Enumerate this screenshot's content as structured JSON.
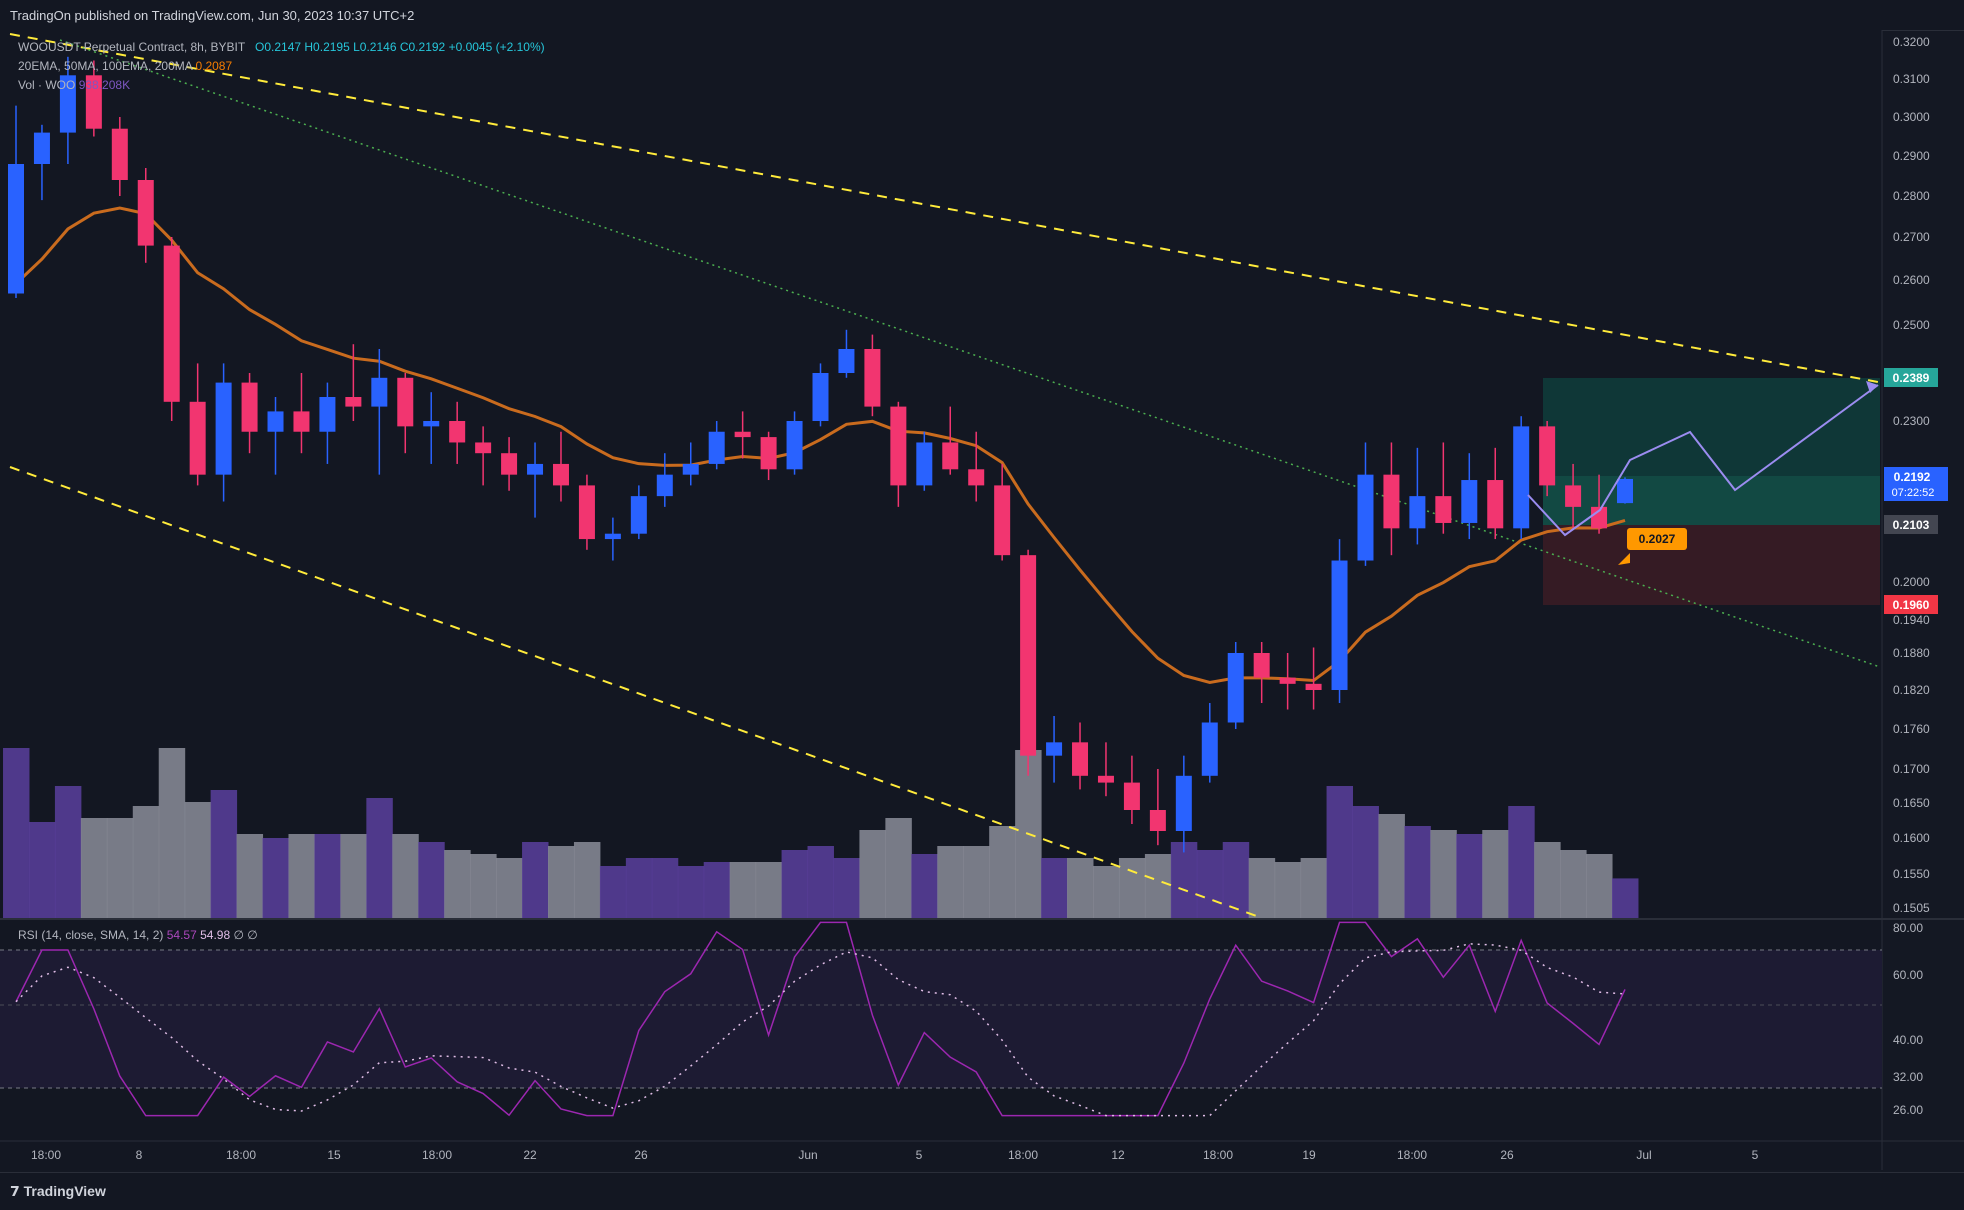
{
  "header": {
    "publisher": "TradingOn published on TradingView.com, Jun 30, 2023 10:37 UTC+2"
  },
  "legend": {
    "symbol": "WOOUSDT Perpetual Contract, 8h, BYBIT",
    "open": "O0.2147",
    "high": "H0.2195",
    "low": "L0.2146",
    "close": "C0.2192",
    "change": "+0.0045 (+2.10%)",
    "ema": "20EMA, 50MA, 100EMA, 200MA",
    "ema_value": "0.2087",
    "vol_label": "Vol · WOO",
    "vol_value": "938.208K"
  },
  "rsi_legend": {
    "label": "RSI (14, close, SMA, 14, 2)",
    "v1": "54.57",
    "v2": "54.98",
    "v3": "∅",
    "v4": "∅"
  },
  "footer": {
    "logo": "TradingView"
  },
  "colors": {
    "up": "#2962ff",
    "down": "#f23570",
    "ema": "#c96b1e",
    "trend": "#ffeb3b",
    "dotted": "#4caf50",
    "rsi": "#9c27b0",
    "tp": "#26a69a",
    "sl": "#ef5350"
  },
  "chart_data": [
    {
      "type": "candlestick",
      "title": "WOOUSDT Perpetual Contract, 8h, BYBIT",
      "price_axis_ticks": [
        "0.3200",
        "0.3100",
        "0.3000",
        "0.2900",
        "0.2800",
        "0.2700",
        "0.2600",
        "0.2500",
        "0.2300",
        "0.2000",
        "0.1940",
        "0.1880",
        "0.1820",
        "0.1760",
        "0.1700",
        "0.1650",
        "0.1600",
        "0.1550",
        "0.1505"
      ],
      "time_axis_ticks": [
        "18:00",
        "8",
        "18:00",
        "15",
        "18:00",
        "22",
        "26",
        "Jun",
        "5",
        "18:00",
        "12",
        "18:00",
        "19",
        "18:00",
        "26",
        "Jul",
        "5"
      ],
      "price_labels": {
        "target": "0.2389",
        "last": "0.2192",
        "countdown": "07:22:52",
        "entry": "0.2103",
        "stop": "0.1960",
        "marker": "0.2027"
      },
      "ohlc_approx": [
        [
          0.257,
          0.303,
          0.256,
          0.288
        ],
        [
          0.288,
          0.298,
          0.279,
          0.296
        ],
        [
          0.296,
          0.316,
          0.288,
          0.311
        ],
        [
          0.311,
          0.315,
          0.295,
          0.297
        ],
        [
          0.297,
          0.3,
          0.28,
          0.284
        ],
        [
          0.284,
          0.287,
          0.264,
          0.268
        ],
        [
          0.268,
          0.27,
          0.23,
          0.234
        ],
        [
          0.234,
          0.242,
          0.218,
          0.22
        ],
        [
          0.22,
          0.242,
          0.215,
          0.238
        ],
        [
          0.238,
          0.24,
          0.224,
          0.228
        ],
        [
          0.228,
          0.235,
          0.22,
          0.232
        ],
        [
          0.232,
          0.24,
          0.224,
          0.228
        ],
        [
          0.228,
          0.238,
          0.222,
          0.235
        ],
        [
          0.235,
          0.246,
          0.23,
          0.233
        ],
        [
          0.233,
          0.245,
          0.22,
          0.239
        ],
        [
          0.239,
          0.24,
          0.224,
          0.229
        ],
        [
          0.229,
          0.236,
          0.222,
          0.23
        ],
        [
          0.23,
          0.234,
          0.222,
          0.226
        ],
        [
          0.226,
          0.229,
          0.218,
          0.224
        ],
        [
          0.224,
          0.227,
          0.217,
          0.22
        ],
        [
          0.22,
          0.226,
          0.212,
          0.222
        ],
        [
          0.222,
          0.228,
          0.215,
          0.218
        ],
        [
          0.218,
          0.22,
          0.206,
          0.208
        ],
        [
          0.208,
          0.212,
          0.204,
          0.209
        ],
        [
          0.209,
          0.218,
          0.208,
          0.216
        ],
        [
          0.216,
          0.224,
          0.214,
          0.22
        ],
        [
          0.22,
          0.226,
          0.218,
          0.222
        ],
        [
          0.222,
          0.23,
          0.221,
          0.228
        ],
        [
          0.228,
          0.232,
          0.223,
          0.227
        ],
        [
          0.227,
          0.228,
          0.219,
          0.221
        ],
        [
          0.221,
          0.232,
          0.22,
          0.23
        ],
        [
          0.23,
          0.242,
          0.229,
          0.24
        ],
        [
          0.24,
          0.249,
          0.239,
          0.245
        ],
        [
          0.245,
          0.248,
          0.231,
          0.233
        ],
        [
          0.233,
          0.234,
          0.214,
          0.218
        ],
        [
          0.218,
          0.228,
          0.217,
          0.226
        ],
        [
          0.226,
          0.233,
          0.22,
          0.221
        ],
        [
          0.221,
          0.228,
          0.215,
          0.218
        ],
        [
          0.218,
          0.222,
          0.204,
          0.205
        ],
        [
          0.205,
          0.206,
          0.169,
          0.172
        ],
        [
          0.172,
          0.178,
          0.168,
          0.174
        ],
        [
          0.174,
          0.177,
          0.167,
          0.169
        ],
        [
          0.169,
          0.174,
          0.166,
          0.168
        ],
        [
          0.168,
          0.172,
          0.162,
          0.164
        ],
        [
          0.164,
          0.17,
          0.159,
          0.161
        ],
        [
          0.161,
          0.172,
          0.158,
          0.169
        ],
        [
          0.169,
          0.18,
          0.168,
          0.177
        ],
        [
          0.177,
          0.19,
          0.176,
          0.188
        ],
        [
          0.188,
          0.19,
          0.18,
          0.184
        ],
        [
          0.184,
          0.188,
          0.179,
          0.183
        ],
        [
          0.183,
          0.189,
          0.179,
          0.182
        ],
        [
          0.182,
          0.208,
          0.18,
          0.204
        ],
        [
          0.204,
          0.226,
          0.203,
          0.22
        ],
        [
          0.22,
          0.226,
          0.205,
          0.21
        ],
        [
          0.21,
          0.225,
          0.207,
          0.216
        ],
        [
          0.216,
          0.226,
          0.209,
          0.211
        ],
        [
          0.211,
          0.224,
          0.208,
          0.219
        ],
        [
          0.219,
          0.225,
          0.208,
          0.21
        ],
        [
          0.21,
          0.231,
          0.208,
          0.229
        ],
        [
          0.229,
          0.23,
          0.216,
          0.218
        ],
        [
          0.218,
          0.222,
          0.21,
          0.214
        ],
        [
          0.214,
          0.22,
          0.209,
          0.21
        ],
        [
          0.2147,
          0.2195,
          0.2146,
          0.2192
        ]
      ],
      "rsi": {
        "label": "RSI (14, close, SMA, 14, 2)",
        "value": 54.57,
        "sma": 54.98,
        "ticks": [
          "80.00",
          "60.00",
          "40.00",
          "32.00",
          "26.00"
        ],
        "levels": [
          70,
          30
        ]
      },
      "annotations": [
        "long position box: entry 0.2103, target 0.2389, stop 0.1960",
        "descending channel (yellow dashed)",
        "dotted green trendline",
        "projected path (purple zigzag)"
      ]
    }
  ]
}
